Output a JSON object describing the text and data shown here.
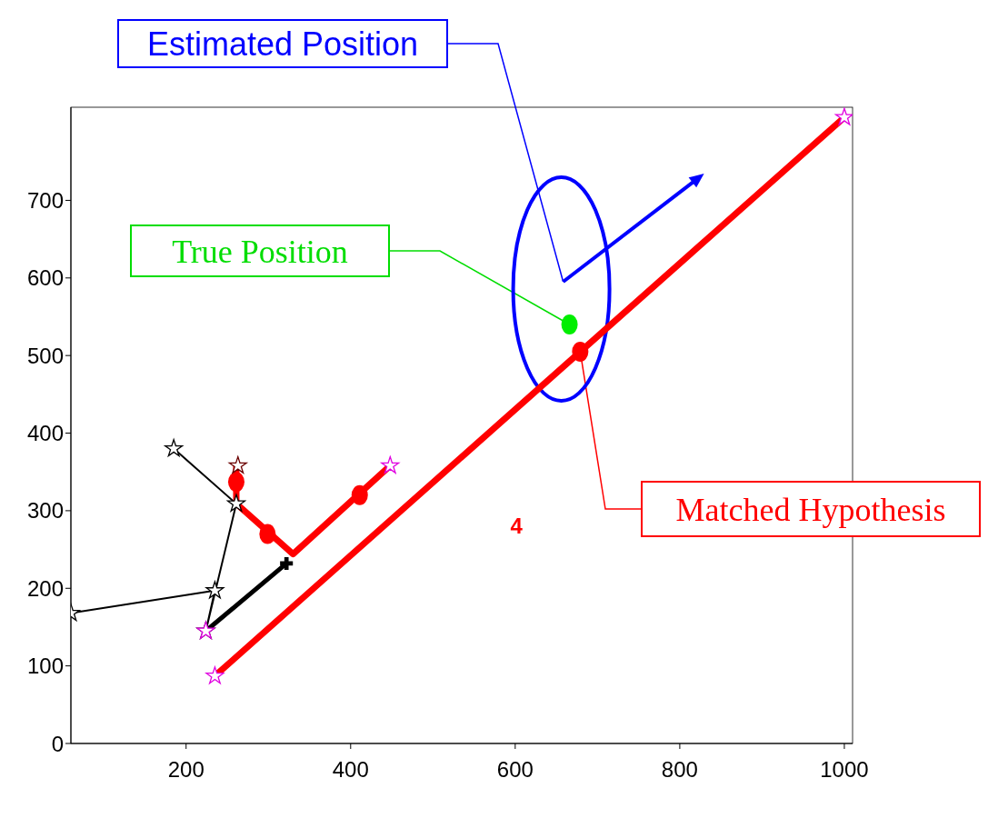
{
  "chart_data": {
    "type": "line",
    "xlim": [
      60,
      1010
    ],
    "ylim": [
      0,
      820
    ],
    "xticks": [
      200,
      400,
      600,
      800,
      1000
    ],
    "yticks": [
      0,
      100,
      200,
      300,
      400,
      500,
      600,
      700
    ],
    "grid": false,
    "legend": false,
    "series": [
      {
        "color": "#000000",
        "x": [
          60,
          235,
          224,
          261,
          185
        ],
        "values": [
          168,
          197,
          145,
          309,
          380
        ],
        "marker": "star"
      },
      {
        "color": "#000000",
        "x": [
          224,
          322
        ],
        "values": [
          145,
          232
        ],
        "marker": "none"
      },
      {
        "type": "scatter",
        "color": "#000000",
        "x": [
          322
        ],
        "values": [
          232
        ],
        "marker": "cross"
      },
      {
        "color": "#ff0000",
        "x": [
          261,
          261,
          330,
          448
        ],
        "values": [
          358,
          309,
          244,
          358
        ],
        "marker": "none"
      },
      {
        "color": "#ff0000",
        "x": [
          235,
          1000
        ],
        "values": [
          87,
          807
        ],
        "marker": "none"
      },
      {
        "type": "scatter",
        "color": "#ff0000",
        "x": [
          261,
          299,
          411,
          679
        ],
        "values": [
          337,
          270,
          320,
          505
        ],
        "marker": "circle"
      },
      {
        "type": "scatter",
        "color": "#00ee00",
        "x": [
          666
        ],
        "values": [
          540
        ],
        "marker": "circle"
      },
      {
        "type": "scatter",
        "colors": [
          "#6b0000",
          "#e000e0",
          "#e000e0",
          "#e000e0",
          "#e000e0"
        ],
        "x": [
          263,
          448,
          1000,
          235,
          224
        ],
        "values": [
          358,
          358,
          807,
          87,
          145
        ],
        "marker": "star"
      }
    ],
    "annotations": [
      "Estimated Position",
      {
        "text": "True Position",
        "x": 666,
        "y": 540
      },
      {
        "text": "Matched Hypothesis",
        "x": 679,
        "y": 505
      },
      "4"
    ]
  }
}
